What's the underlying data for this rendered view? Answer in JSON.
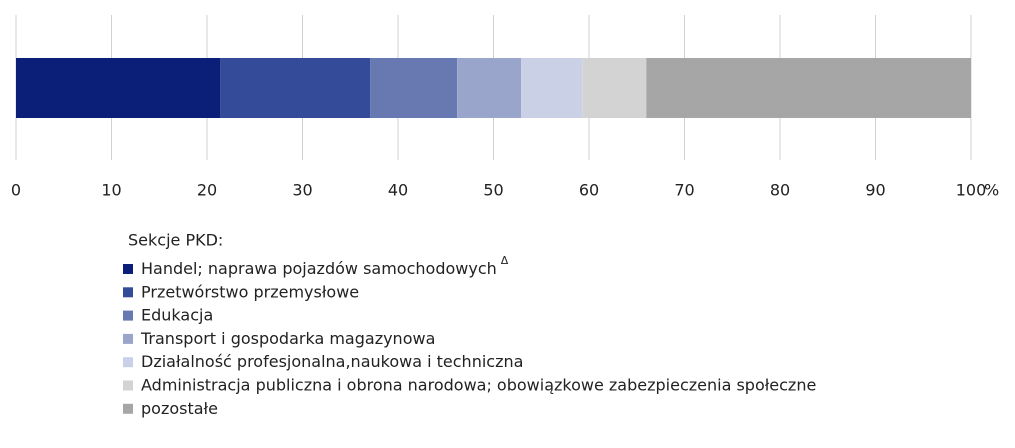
{
  "chart_data": {
    "type": "stacked-bar-horizontal",
    "series": [
      {
        "name": "Handel; naprawa pojazdów samochodowych",
        "superscript": "Δ",
        "color": "#0b1f78",
        "values": [
          21.4
        ]
      },
      {
        "name": "Przetwórstwo przemysłowe",
        "color": "#334b98",
        "values": [
          15.7
        ]
      },
      {
        "name": "Edukacja",
        "color": "#6779b0",
        "values": [
          9.1
        ]
      },
      {
        "name": "Transport i gospodarka magazynowa",
        "color": "#9aa5cb",
        "values": [
          6.7
        ]
      },
      {
        "name": "Działalność profesjonalna,naukowa i techniczna",
        "color": "#cad0e6",
        "values": [
          6.4
        ]
      },
      {
        "name": "Administracja publiczna i obrona narodowa; obowiązkowe zabezpieczenia społeczne",
        "color": "#d3d3d3",
        "values": [
          6.7
        ]
      },
      {
        "name": "pozostałe",
        "color": "#a6a6a6",
        "values": [
          34.0
        ]
      }
    ],
    "xlim": [
      0,
      100
    ],
    "xticks": [
      0,
      10,
      20,
      30,
      40,
      50,
      60,
      70,
      80,
      90,
      100
    ],
    "x_label": "%",
    "grid": true,
    "legend_title": "Sekcje PKD:"
  }
}
